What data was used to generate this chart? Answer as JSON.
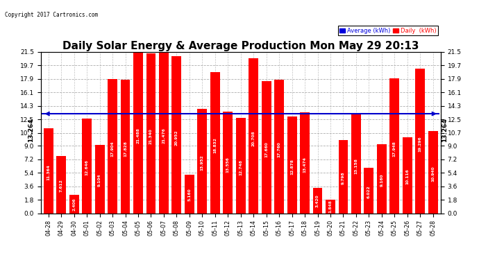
{
  "title": "Daily Solar Energy & Average Production Mon May 29 20:13",
  "copyright": "Copyright 2017 Cartronics.com",
  "average_label": "13.264",
  "average_value": 13.264,
  "categories": [
    "04-28",
    "04-29",
    "04-30",
    "05-01",
    "05-02",
    "05-03",
    "05-04",
    "05-05",
    "05-06",
    "05-07",
    "05-08",
    "05-09",
    "05-10",
    "05-11",
    "05-12",
    "05-13",
    "05-14",
    "05-15",
    "05-16",
    "05-17",
    "05-18",
    "05-19",
    "05-20",
    "05-21",
    "05-22",
    "05-23",
    "05-24",
    "05-25",
    "05-26",
    "05-27",
    "05-28"
  ],
  "values": [
    11.364,
    7.612,
    2.406,
    12.646,
    9.104,
    17.904,
    17.828,
    21.488,
    21.34,
    21.476,
    20.952,
    5.16,
    13.952,
    18.832,
    13.556,
    12.748,
    20.708,
    17.66,
    17.76,
    12.878,
    13.474,
    3.42,
    1.848,
    9.798,
    13.158,
    6.022,
    9.16,
    17.948,
    10.116,
    19.296,
    10.94
  ],
  "bar_color": "#ff0000",
  "average_line_color": "#0000cc",
  "background_color": "#ffffff",
  "plot_bg_color": "#ffffff",
  "grid_color": "#999999",
  "title_fontsize": 11,
  "ytick_labels": [
    "0.0",
    "1.8",
    "3.6",
    "5.4",
    "7.2",
    "9.0",
    "10.7",
    "12.5",
    "14.3",
    "16.1",
    "17.9",
    "19.7",
    "21.5"
  ],
  "ytick_values": [
    0.0,
    1.8,
    3.6,
    5.4,
    7.2,
    9.0,
    10.7,
    12.5,
    14.3,
    16.1,
    17.9,
    19.7,
    21.5
  ],
  "ylim": [
    0.0,
    21.5
  ],
  "legend_avg_color": "#0000dd",
  "legend_daily_color": "#ff0000",
  "legend_avg_text": "Average (kWh)",
  "legend_daily_text": "Daily  (kWh)",
  "fig_width": 6.9,
  "fig_height": 3.75,
  "dpi": 100
}
